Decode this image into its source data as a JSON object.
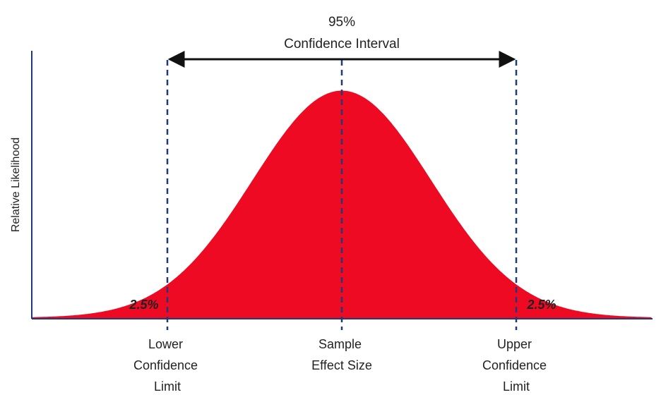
{
  "header": {
    "percent": "95%",
    "title": "Confidence Interval"
  },
  "axes": {
    "y_label": "Relative Likelihood"
  },
  "tails": {
    "left_label": "2.5%",
    "right_label": "2.5%"
  },
  "markers": {
    "lower": [
      "Lower",
      "Confidence",
      "Limit"
    ],
    "center": [
      "Sample",
      "Effect Size"
    ],
    "upper": [
      "Upper",
      "Confidence",
      "Limit"
    ]
  },
  "colors": {
    "curve_fill": "#EE0A23",
    "axis": "#1F3A7A",
    "dashed_line": "#1F3A7A",
    "arrow": "#111111"
  }
}
